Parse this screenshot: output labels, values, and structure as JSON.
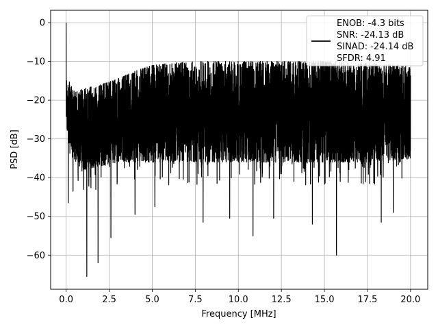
{
  "chart_data": {
    "type": "line",
    "title": "",
    "xlabel": "Frequency [MHz]",
    "ylabel": "PSD [dB]",
    "xlim": [
      -0.9,
      21.0
    ],
    "ylim": [
      -68.8,
      3.2
    ],
    "x_ticks": [
      0.0,
      2.5,
      5.0,
      7.5,
      10.0,
      12.5,
      15.0,
      17.5,
      20.0
    ],
    "x_tick_labels": [
      "0.0",
      "2.5",
      "5.0",
      "7.5",
      "10.0",
      "12.5",
      "15.0",
      "17.5",
      "20.0"
    ],
    "y_ticks": [
      0,
      -10,
      -20,
      -30,
      -40,
      -50,
      -60
    ],
    "y_tick_labels": [
      "0",
      "−10",
      "−20",
      "−30",
      "−40",
      "−50",
      "−60"
    ],
    "grid": true,
    "legend_position": "top-right",
    "legend_entries": [
      "ENOB: -4.3 bits",
      "SNR: -24.13 dB",
      "SINAD: -24.14 dB",
      "SFDR: 4.91"
    ],
    "series": [
      {
        "color": "#000000",
        "description": "dense noise floor PSD trace",
        "x_range": [
          0.0,
          20.0
        ],
        "peak_at_dc": 0.0,
        "upper_envelope": [
          [
            0.1,
            -14.5
          ],
          [
            0.5,
            -18
          ],
          [
            1.0,
            -17
          ],
          [
            2.0,
            -16
          ],
          [
            3.0,
            -14.5
          ],
          [
            4.0,
            -12.5
          ],
          [
            5.0,
            -11
          ],
          [
            6.0,
            -10.5
          ],
          [
            7.5,
            -10
          ],
          [
            10.0,
            -10
          ],
          [
            12.5,
            -10
          ],
          [
            15.0,
            -10
          ],
          [
            17.5,
            -10.5
          ],
          [
            20.0,
            -11
          ]
        ],
        "lower_envelope": [
          [
            0.1,
            -28
          ],
          [
            0.5,
            -36
          ],
          [
            1.0,
            -38
          ],
          [
            2.0,
            -37
          ],
          [
            3.0,
            -36
          ],
          [
            5.0,
            -36
          ],
          [
            7.5,
            -36
          ],
          [
            10.0,
            -36
          ],
          [
            12.5,
            -36
          ],
          [
            15.0,
            -36
          ],
          [
            17.5,
            -36
          ],
          [
            20.0,
            -35
          ]
        ],
        "notable_dips": [
          [
            0.12,
            -46.5
          ],
          [
            0.4,
            -43.5
          ],
          [
            1.2,
            -65.5
          ],
          [
            1.85,
            -62
          ],
          [
            2.6,
            -55.5
          ],
          [
            4.0,
            -49.5
          ],
          [
            5.15,
            -47.5
          ],
          [
            7.95,
            -51.5
          ],
          [
            9.5,
            -50.5
          ],
          [
            10.85,
            -55
          ],
          [
            12.05,
            -50.5
          ],
          [
            14.3,
            -52
          ],
          [
            15.7,
            -60
          ],
          [
            18.3,
            -51.5
          ],
          [
            19.0,
            -49
          ]
        ]
      }
    ]
  }
}
